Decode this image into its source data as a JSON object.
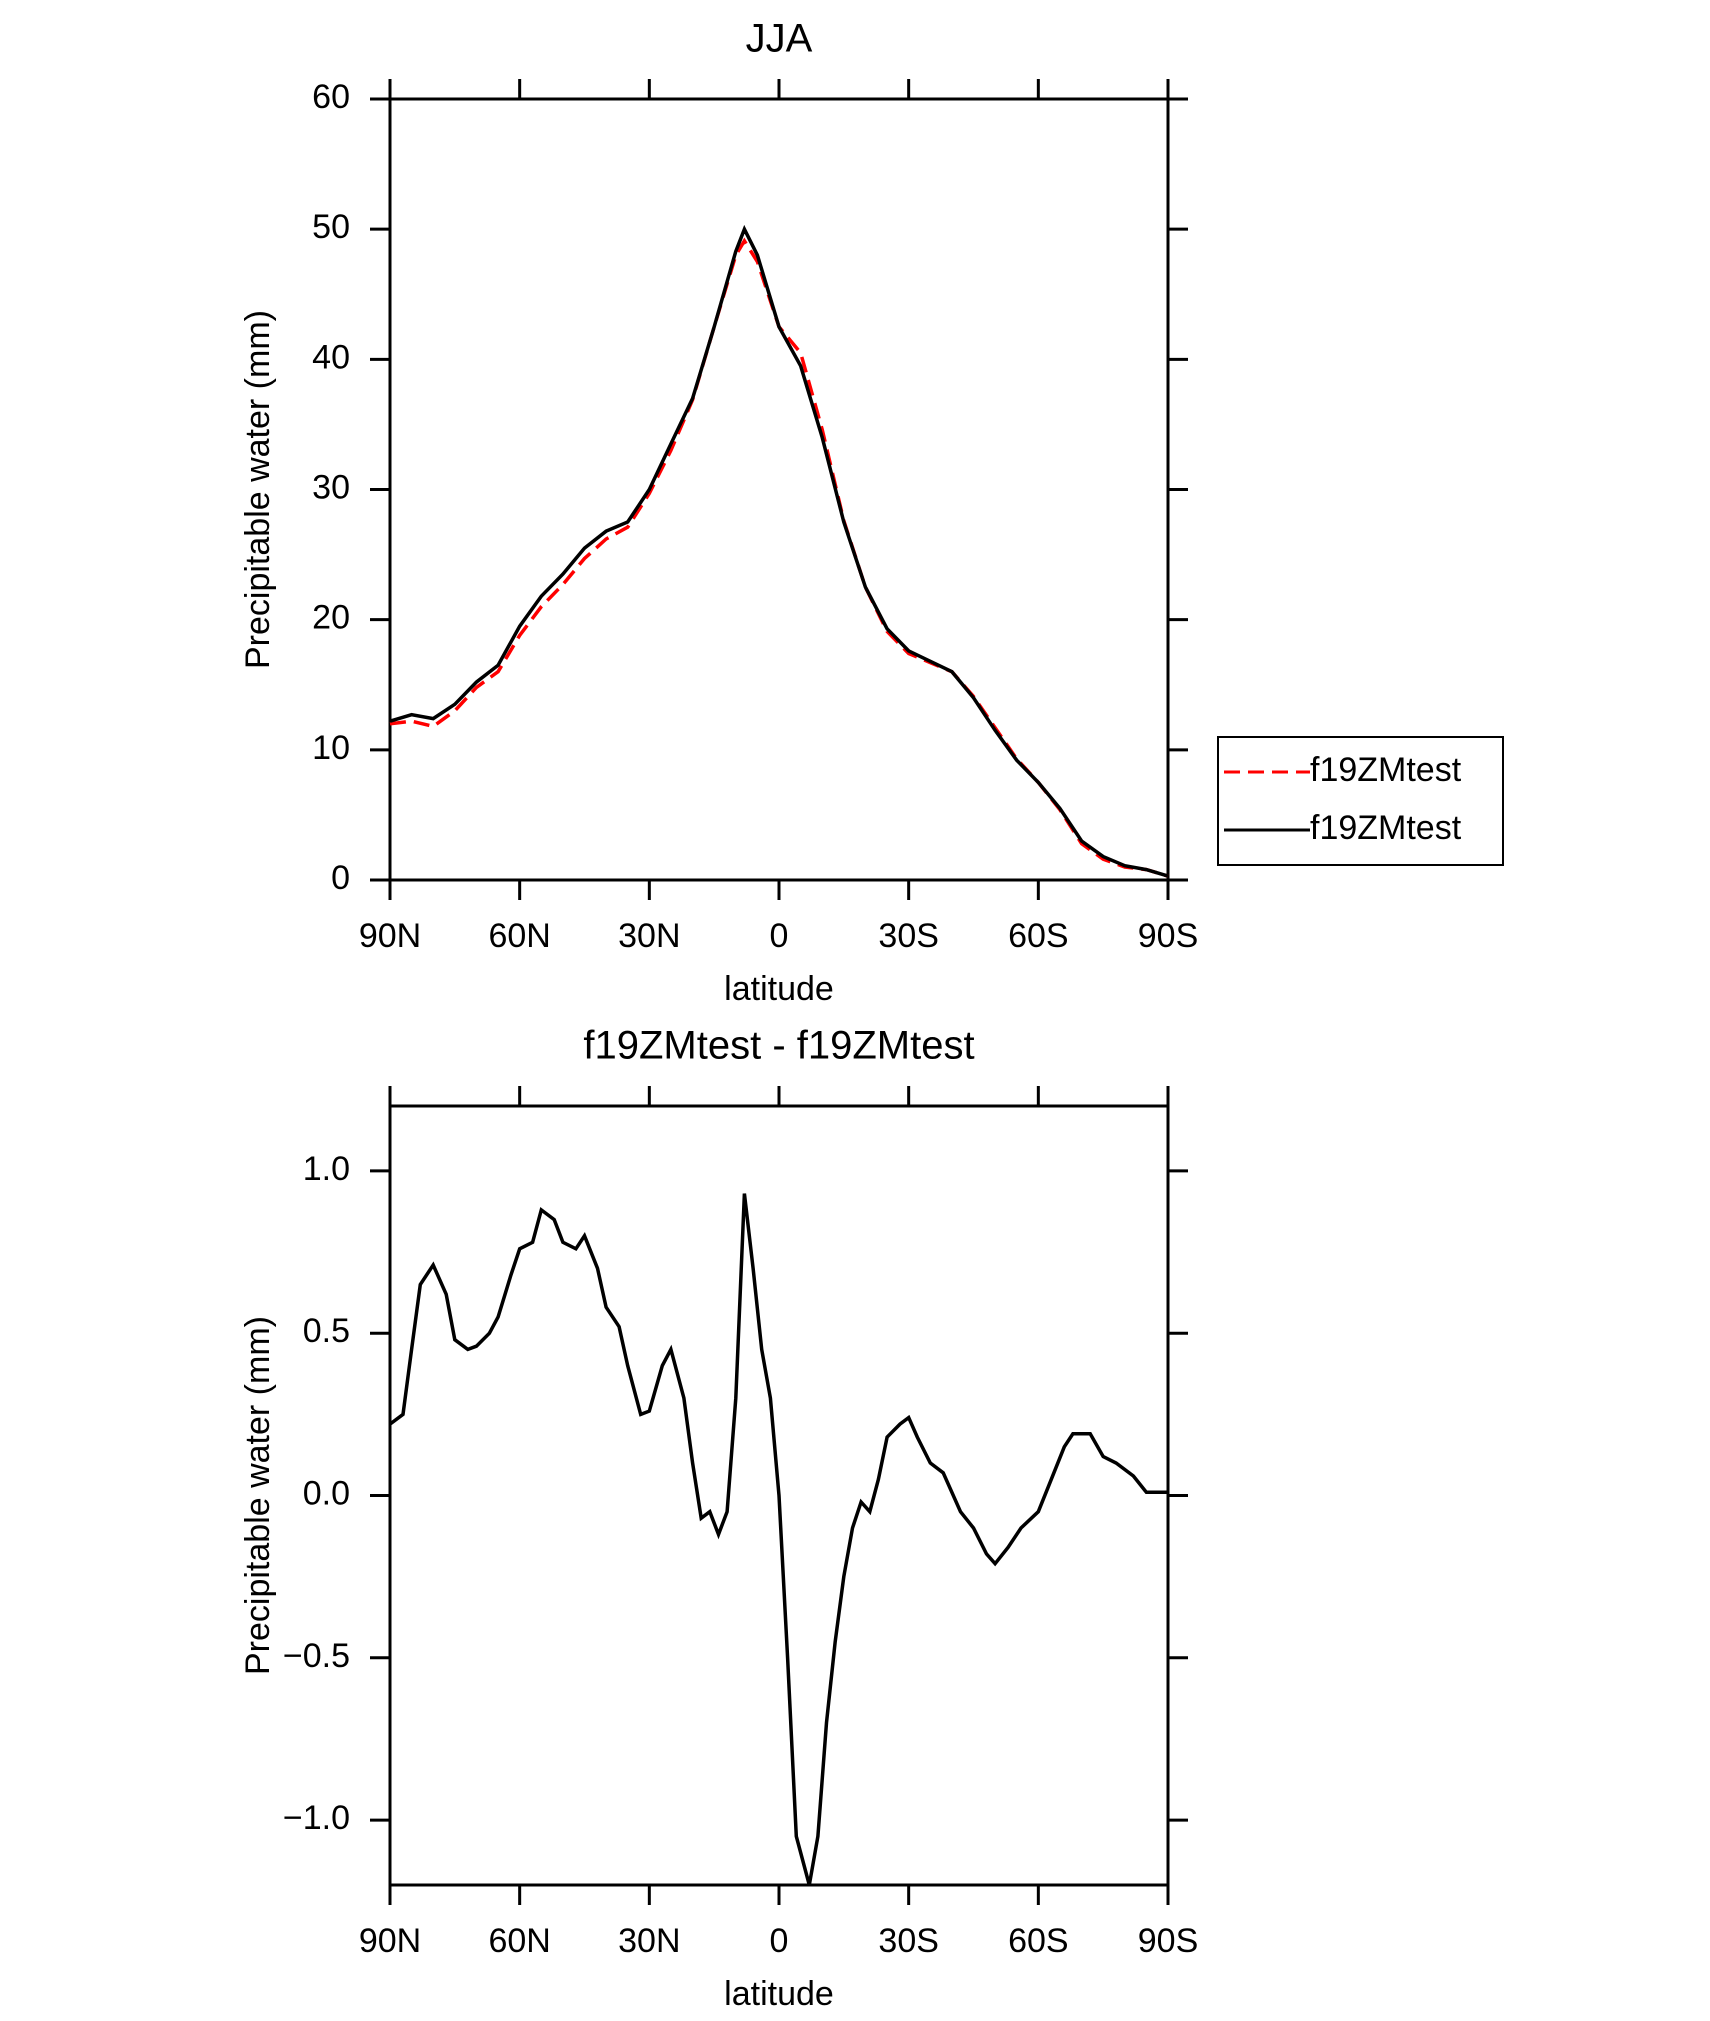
{
  "chart_data": [
    {
      "type": "line",
      "title": "JJA",
      "xlabel": "latitude",
      "ylabel": "Precipitable water (mm)",
      "x": [
        90,
        85,
        80,
        75,
        70,
        65,
        60,
        55,
        50,
        45,
        40,
        35,
        30,
        25,
        20,
        15,
        10,
        8,
        5,
        0,
        -5,
        -10,
        -15,
        -20,
        -25,
        -30,
        -35,
        -40,
        -45,
        -50,
        -55,
        -60,
        -65,
        -70,
        -75,
        -80,
        -85,
        -90
      ],
      "xlim": [
        90,
        -90
      ],
      "xticks": [
        {
          "value": 90,
          "label": "90N"
        },
        {
          "value": 60,
          "label": "60N"
        },
        {
          "value": 30,
          "label": "30N"
        },
        0,
        {
          "value": -30,
          "label": "30S"
        },
        {
          "value": -60,
          "label": "60S"
        },
        {
          "value": -90,
          "label": "90S"
        }
      ],
      "ylim": [
        0,
        60
      ],
      "yticks": [
        0,
        10,
        20,
        30,
        40,
        50,
        60
      ],
      "legend": "right",
      "series": [
        {
          "name": "f19ZMtest",
          "color": "#ff0000",
          "line_style": "dashed",
          "values": [
            12.0,
            12.2,
            11.8,
            13.0,
            14.8,
            16.0,
            18.8,
            21.0,
            22.7,
            24.7,
            26.2,
            27.1,
            29.7,
            33.0,
            36.9,
            42.5,
            48.0,
            49.1,
            47.5,
            42.5,
            40.5,
            34.6,
            27.6,
            22.5,
            19.1,
            17.4,
            16.7,
            16.0,
            14.1,
            11.7,
            9.3,
            7.5,
            5.4,
            2.8,
            1.6,
            1.0,
            0.8,
            0.3
          ]
        },
        {
          "name": "f19ZMtest",
          "color": "#000000",
          "line_style": "solid",
          "values": [
            12.2,
            12.7,
            12.4,
            13.5,
            15.2,
            16.5,
            19.5,
            21.8,
            23.5,
            25.5,
            26.8,
            27.5,
            30.0,
            33.5,
            37.0,
            42.5,
            48.3,
            50.0,
            48.0,
            42.5,
            39.5,
            34.0,
            27.5,
            22.5,
            19.3,
            17.6,
            16.8,
            16.0,
            14.0,
            11.5,
            9.2,
            7.5,
            5.5,
            3.0,
            1.8,
            1.1,
            0.8,
            0.3
          ]
        }
      ]
    },
    {
      "type": "line",
      "title": "f19ZMtest - f19ZMtest",
      "xlabel": "latitude",
      "ylabel": "Precipitable water (mm)",
      "x": [
        90,
        87,
        85,
        83,
        80,
        77,
        75,
        72,
        70,
        67,
        65,
        62,
        60,
        57,
        55,
        52,
        50,
        47,
        45,
        42,
        40,
        37,
        35,
        32,
        30,
        27,
        25,
        22,
        20,
        18,
        16,
        14,
        12,
        10,
        8,
        6,
        4,
        2,
        0,
        -2,
        -4,
        -7,
        -9,
        -11,
        -13,
        -15,
        -17,
        -19,
        -21,
        -23,
        -25,
        -28,
        -30,
        -32,
        -35,
        -38,
        -42,
        -45,
        -48,
        -50,
        -53,
        -56,
        -60,
        -63,
        -66,
        -68,
        -72,
        -75,
        -78,
        -82,
        -85,
        -90
      ],
      "xlim": [
        90,
        -90
      ],
      "xticks": [
        {
          "value": 90,
          "label": "90N"
        },
        {
          "value": 60,
          "label": "60N"
        },
        {
          "value": 30,
          "label": "30N"
        },
        0,
        {
          "value": -30,
          "label": "30S"
        },
        {
          "value": -60,
          "label": "60S"
        },
        {
          "value": -90,
          "label": "90S"
        }
      ],
      "ylim": [
        -1.2,
        1.2
      ],
      "yticks": [
        {
          "value": -1,
          "label": "−1.0"
        },
        {
          "value": -0.5,
          "label": "−0.5"
        },
        {
          "value": 0,
          "label": "0.0"
        },
        {
          "value": 0.5,
          "label": "0.5"
        },
        {
          "value": 1,
          "label": "1.0"
        }
      ],
      "color": "#000000",
      "values": [
        0.22,
        0.25,
        0.45,
        0.65,
        0.71,
        0.62,
        0.48,
        0.45,
        0.46,
        0.5,
        0.55,
        0.68,
        0.76,
        0.78,
        0.88,
        0.85,
        0.78,
        0.76,
        0.8,
        0.7,
        0.58,
        0.52,
        0.4,
        0.25,
        0.26,
        0.4,
        0.45,
        0.3,
        0.1,
        -0.07,
        -0.05,
        -0.12,
        -0.05,
        0.3,
        0.93,
        0.7,
        0.45,
        0.3,
        0.0,
        -0.5,
        -1.05,
        -1.2,
        -1.05,
        -0.7,
        -0.45,
        -0.25,
        -0.1,
        -0.02,
        -0.05,
        0.05,
        0.18,
        0.22,
        0.24,
        0.18,
        0.1,
        0.07,
        -0.05,
        -0.1,
        -0.18,
        -0.21,
        -0.16,
        -0.1,
        -0.05,
        0.05,
        0.15,
        0.19,
        0.19,
        0.12,
        0.1,
        0.06,
        0.01,
        0.01
      ]
    }
  ]
}
